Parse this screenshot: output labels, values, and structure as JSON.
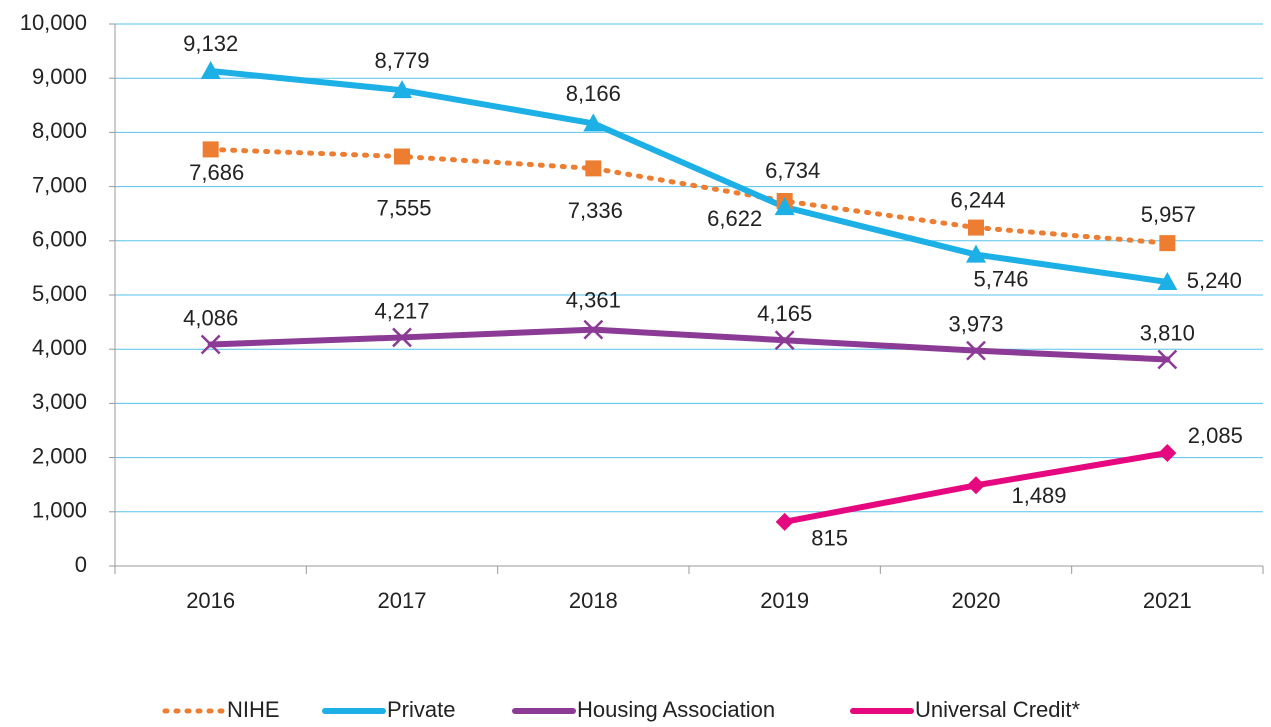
{
  "chart_data": {
    "type": "line",
    "categories": [
      "2016",
      "2017",
      "2018",
      "2019",
      "2020",
      "2021"
    ],
    "series": [
      {
        "name": "NIHE",
        "color": "#ed7d31",
        "values": [
          7686,
          7555,
          7336,
          6734,
          6244,
          5957
        ],
        "value_labels": [
          "7,686",
          "7,555",
          "7,336",
          "6,734",
          "6,244",
          "5,957"
        ]
      },
      {
        "name": "Private",
        "color": "#1cb0e6",
        "values": [
          9132,
          8779,
          8166,
          6622,
          5746,
          5240
        ],
        "value_labels": [
          "9,132",
          "8,779",
          "8,166",
          "6,622",
          "5,746",
          "5,240"
        ]
      },
      {
        "name": "Housing Association",
        "color": "#8b3a95",
        "values": [
          4086,
          4217,
          4361,
          4165,
          3973,
          3810
        ],
        "value_labels": [
          "4,086",
          "4,217",
          "4,361",
          "4,165",
          "3,973",
          "3,810"
        ]
      },
      {
        "name": "Universal Credit*",
        "color": "#e5087e",
        "values": [
          null,
          null,
          null,
          815,
          1489,
          2085
        ],
        "value_labels": [
          null,
          null,
          null,
          "815",
          "1,489",
          "2,085"
        ]
      }
    ],
    "ylim": [
      0,
      10000
    ],
    "yticks": [
      0,
      {
        "value": 1000,
        "label": "1,000"
      },
      {
        "value": 2000,
        "label": "2,000"
      },
      {
        "value": 3000,
        "label": "3,000"
      },
      {
        "value": 4000,
        "label": "4,000"
      },
      {
        "value": 5000,
        "label": "5,000"
      },
      {
        "value": 6000,
        "label": "6,000"
      },
      {
        "value": 7000,
        "label": "7,000"
      },
      {
        "value": 8000,
        "label": "8,000"
      },
      {
        "value": 9000,
        "label": "9,000"
      },
      {
        "value": 10000,
        "label": "10,000"
      }
    ],
    "grid": true,
    "legend": "bottom"
  }
}
